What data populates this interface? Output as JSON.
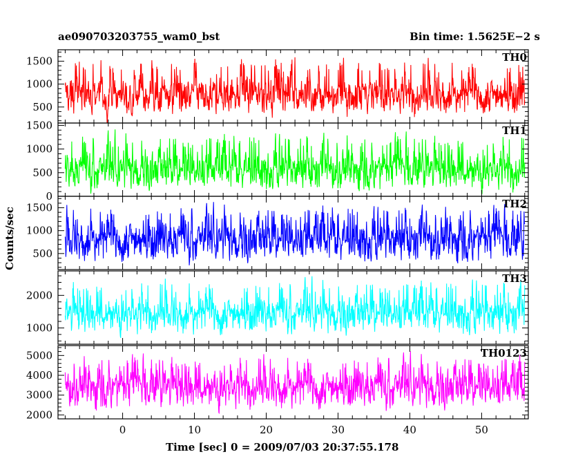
{
  "header": {
    "left_title": "ae090703203755_wam0_bst",
    "right_title": "Bin time: 1.5625E−2 s"
  },
  "chart_data": {
    "type": "line",
    "xlabel": "Time [sec] 0 = 2009/07/03 20:37:55.178",
    "ylabel": "Counts/sec",
    "xlim": [
      -9,
      56.5
    ],
    "x_ticks": [
      0,
      10,
      20,
      30,
      40,
      50
    ],
    "x_range_data": [
      -8,
      56
    ],
    "panels": [
      {
        "label": "TH0",
        "color": "#ff0000",
        "ylim": [
          150,
          1750
        ],
        "y_ticks": [
          500,
          1000,
          1500
        ],
        "baseline": 800,
        "noise": 260,
        "floor": 280,
        "ceil": 1780
      },
      {
        "label": "TH1",
        "color": "#00ff00",
        "ylim": [
          0,
          1550
        ],
        "y_ticks": [
          0,
          500,
          1000,
          1500
        ],
        "baseline": 600,
        "noise": 260,
        "floor": 60,
        "ceil": 1560
      },
      {
        "label": "TH2",
        "color": "#0000ff",
        "ylim": [
          150,
          1750
        ],
        "y_ticks": [
          500,
          1000,
          1500
        ],
        "baseline": 850,
        "noise": 290,
        "floor": 220,
        "ceil": 1770
      },
      {
        "label": "TH3",
        "color": "#00ffff",
        "ylim": [
          500,
          2750
        ],
        "y_ticks": [
          1000,
          2000
        ],
        "baseline": 1500,
        "noise": 330,
        "floor": 650,
        "ceil": 2780
      },
      {
        "label": "TH0123",
        "color": "#ff00ff",
        "ylim": [
          1800,
          5500
        ],
        "y_ticks": [
          2000,
          3000,
          4000,
          5000
        ],
        "baseline": 3500,
        "noise": 620,
        "floor": 2050,
        "ceil": 5520
      }
    ]
  }
}
